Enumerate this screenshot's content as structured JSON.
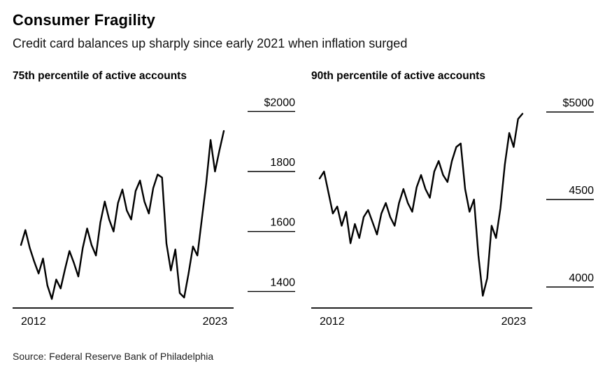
{
  "header": {
    "title": "Consumer Fragility",
    "subtitle": "Credit card balances up sharply since early 2021 when inflation surged"
  },
  "footer": {
    "source": "Source: Federal Reserve Bank of Philadelphia"
  },
  "colors": {
    "line": "#000000",
    "axis": "#000000",
    "text": "#000000",
    "background": "#ffffff"
  },
  "chart_data": [
    {
      "type": "line",
      "title": "75th percentile of active accounts",
      "xlabel": "",
      "ylabel": "",
      "unit": "USD",
      "x_start": 2012,
      "x_end": 2023.5,
      "ylim": [
        1345,
        2010
      ],
      "grid": false,
      "legend": "none",
      "x_ticks": [
        {
          "label": "2012",
          "value": 2012
        },
        {
          "label": "2023",
          "value": 2023
        }
      ],
      "y_ticks": [
        {
          "label": "$2000",
          "value": 2000
        },
        {
          "label": "1800",
          "value": 1800
        },
        {
          "label": "1600",
          "value": 1600
        },
        {
          "label": "1400",
          "value": 1400
        }
      ],
      "values": [
        1555,
        1605,
        1545,
        1500,
        1460,
        1510,
        1420,
        1375,
        1440,
        1410,
        1475,
        1535,
        1495,
        1450,
        1545,
        1610,
        1555,
        1520,
        1630,
        1700,
        1640,
        1600,
        1695,
        1740,
        1670,
        1640,
        1735,
        1770,
        1700,
        1660,
        1745,
        1790,
        1780,
        1560,
        1470,
        1540,
        1395,
        1380,
        1460,
        1550,
        1520,
        1640,
        1760,
        1905,
        1800,
        1870,
        1935
      ]
    },
    {
      "type": "line",
      "title": "90th percentile of active accounts",
      "xlabel": "",
      "ylabel": "",
      "unit": "USD",
      "x_start": 2012,
      "x_end": 2023.5,
      "ylim": [
        3880,
        5020
      ],
      "grid": false,
      "legend": "none",
      "x_ticks": [
        {
          "label": "2012",
          "value": 2012
        },
        {
          "label": "2023",
          "value": 2023
        }
      ],
      "y_ticks": [
        {
          "label": "$5000",
          "value": 5000
        },
        {
          "label": "4500",
          "value": 4500
        },
        {
          "label": "4000",
          "value": 4000
        }
      ],
      "values": [
        4620,
        4660,
        4540,
        4420,
        4460,
        4350,
        4430,
        4250,
        4360,
        4280,
        4400,
        4440,
        4370,
        4300,
        4420,
        4480,
        4400,
        4350,
        4480,
        4560,
        4480,
        4430,
        4570,
        4640,
        4560,
        4510,
        4660,
        4720,
        4640,
        4600,
        4720,
        4800,
        4820,
        4560,
        4430,
        4500,
        4180,
        3950,
        4050,
        4350,
        4280,
        4450,
        4700,
        4880,
        4800,
        4960,
        4990
      ]
    }
  ]
}
